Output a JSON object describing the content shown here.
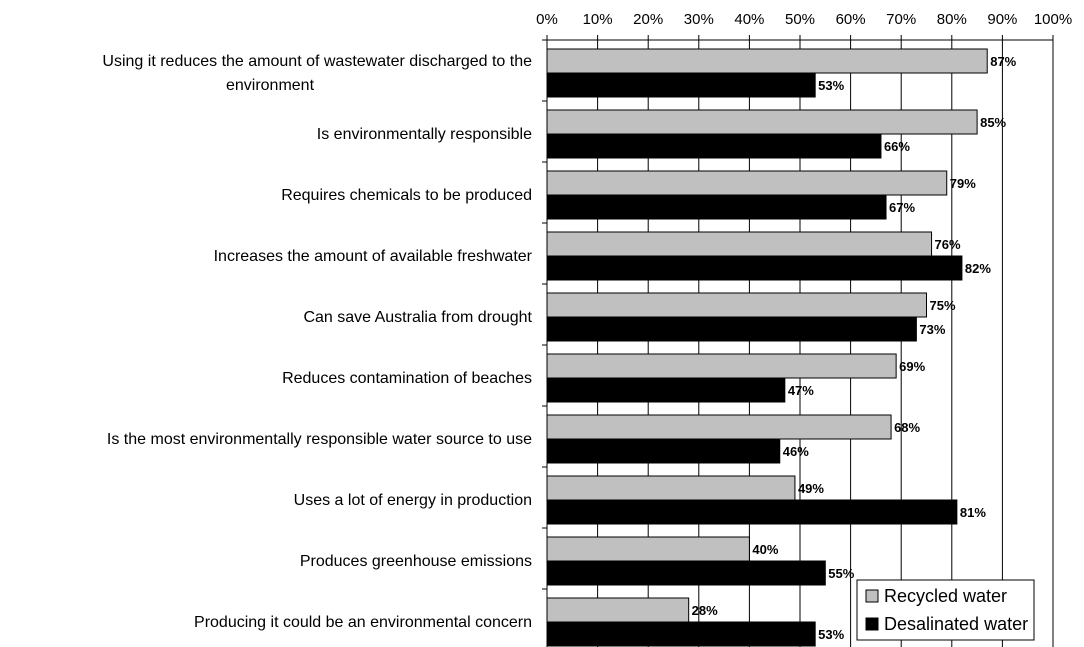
{
  "chart_data": {
    "type": "bar",
    "orientation": "horizontal",
    "x_tick_labels": [
      "0%",
      "10%",
      "20%",
      "30%",
      "40%",
      "50%",
      "60%",
      "70%",
      "80%",
      "90%",
      "100%"
    ],
    "xlim": [
      0,
      100
    ],
    "grid": "vertical",
    "legend_placement": "bottom-right",
    "categories": [
      [
        "Using it reduces the amount of wastewater discharged to the",
        "environment"
      ],
      [
        "Is environmentally responsible"
      ],
      [
        "Requires chemicals to be produced"
      ],
      [
        "Increases the amount of available freshwater"
      ],
      [
        "Can save Australia from drought"
      ],
      [
        "Reduces contamination of beaches"
      ],
      [
        "Is the most environmentally responsible water source to use"
      ],
      [
        "Uses a lot of energy in production"
      ],
      [
        "Produces greenhouse emissions"
      ],
      [
        "Producing it could be an environmental concern"
      ]
    ],
    "series": [
      {
        "name": "Recycled water",
        "color": "#c0c0c0",
        "values": [
          87,
          85,
          79,
          76,
          75,
          69,
          68,
          49,
          40,
          28
        ],
        "labels": [
          "87%",
          "85%",
          "79%",
          "76%",
          "75%",
          "69%",
          "68%",
          "49%",
          "40%",
          "28%"
        ]
      },
      {
        "name": "Desalinated water",
        "color": "#000000",
        "values": [
          53,
          66,
          67,
          82,
          73,
          47,
          46,
          81,
          55,
          53
        ],
        "labels": [
          "53%",
          "66%",
          "67%",
          "82%",
          "73%",
          "47%",
          "46%",
          "81%",
          "55%",
          "53%"
        ]
      }
    ]
  }
}
